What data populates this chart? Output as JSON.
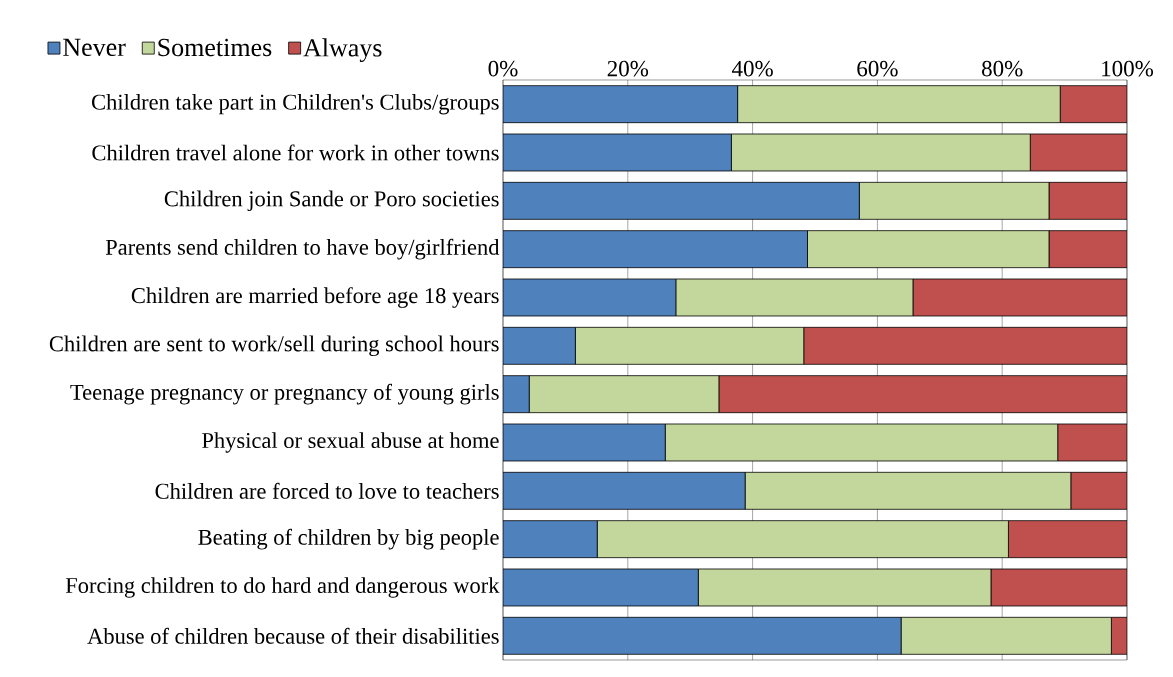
{
  "chart_data": {
    "type": "bar",
    "orientation": "horizontal",
    "stacked": true,
    "categories": [
      "Children take part in Children's Clubs/groups",
      "Children travel alone for work in other towns",
      "Children join Sande or Poro societies",
      "Parents send children to have boy/girlfriend",
      "Children are married before age 18 years",
      "Children are sent to work/sell during school hours",
      "Teenage pregnancy or pregnancy of young girls",
      "Physical or sexual abuse at home",
      "Children are forced to love to teachers",
      "Beating of children by big people",
      "Forcing children to do hard and dangerous work",
      "Abuse of children because of their disabilities"
    ],
    "series": [
      {
        "name": "Never",
        "color": "#4f81bd",
        "values": [
          37.6,
          36.6,
          57.1,
          48.8,
          27.7,
          11.6,
          4.2,
          26.0,
          38.8,
          15.1,
          31.3,
          63.8
        ]
      },
      {
        "name": "Sometimes",
        "color": "#c3d69b",
        "values": [
          51.7,
          47.9,
          30.4,
          38.7,
          38.0,
          36.6,
          30.4,
          62.9,
          52.2,
          65.9,
          46.9,
          33.7
        ]
      },
      {
        "name": "Always",
        "color": "#c0504d",
        "values": [
          10.7,
          15.5,
          12.5,
          12.5,
          34.3,
          51.8,
          65.4,
          11.1,
          9.0,
          19.0,
          21.8,
          2.5
        ]
      }
    ],
    "xlim": [
      0,
      100
    ],
    "xticks": [
      {
        "value": 0,
        "label": "0%"
      },
      {
        "value": 20,
        "label": "20%"
      },
      {
        "value": 40,
        "label": "40%"
      },
      {
        "value": 60,
        "label": "60%"
      },
      {
        "value": 80,
        "label": "80%"
      },
      {
        "value": 100,
        "label": "100%"
      }
    ],
    "grid": "x",
    "legend": "top left"
  }
}
